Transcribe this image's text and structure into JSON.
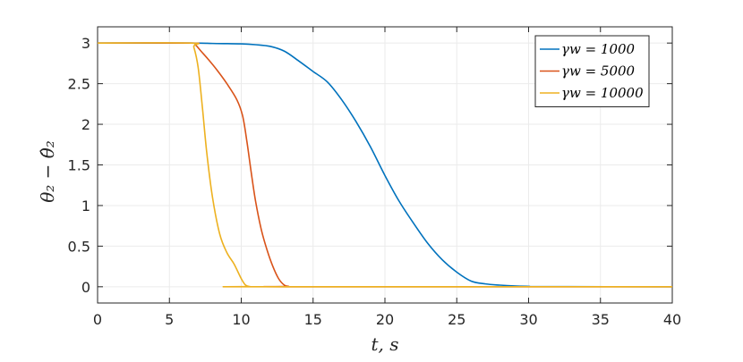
{
  "chart_data": {
    "type": "line",
    "title": "",
    "xlabel": "t, s",
    "ylabel": "θ₂ − θ̂₂",
    "xlim": [
      0,
      40
    ],
    "ylim": [
      -0.2,
      3.2
    ],
    "xticks": [
      0,
      5,
      10,
      15,
      20,
      25,
      30,
      35,
      40
    ],
    "yticks": [
      0,
      0.5,
      1,
      1.5,
      2,
      2.5,
      3
    ],
    "xtick_labels": [
      "0",
      "5",
      "10",
      "15",
      "20",
      "25",
      "30",
      "35",
      "40"
    ],
    "ytick_labels": [
      "0",
      "0.5",
      "1",
      "1.5",
      "2",
      "2.5",
      "3"
    ],
    "grid": true,
    "legend_position": "top-right",
    "series": [
      {
        "name": "γw = 1000",
        "color": "#0072BD",
        "x": [
          0,
          6.5,
          8,
          10,
          11,
          12,
          13,
          14,
          15,
          16,
          17,
          18,
          19,
          20,
          21,
          22,
          23,
          24,
          25,
          26,
          27,
          28,
          29,
          30,
          31,
          40
        ],
        "y": [
          3,
          3,
          2.995,
          2.99,
          2.98,
          2.96,
          2.9,
          2.78,
          2.65,
          2.52,
          2.3,
          2.03,
          1.72,
          1.37,
          1.05,
          0.78,
          0.53,
          0.33,
          0.18,
          0.07,
          0.035,
          0.02,
          0.01,
          0.005,
          0.002,
          0
        ]
      },
      {
        "name": "γw = 5000",
        "color": "#D95319",
        "x": [
          0,
          6.5,
          6.8,
          7.2,
          7.7,
          8.3,
          9,
          9.7,
          10.1,
          10.4,
          10.7,
          11,
          11.4,
          11.8,
          12.2,
          12.6,
          13,
          13.3,
          13.6,
          40
        ],
        "y": [
          3,
          3,
          2.98,
          2.9,
          2.8,
          2.67,
          2.5,
          2.3,
          2.1,
          1.78,
          1.4,
          1.05,
          0.7,
          0.45,
          0.25,
          0.1,
          0.02,
          0.005,
          0,
          0
        ]
      },
      {
        "name": "γw = 10000",
        "color": "#EDB120",
        "x": [
          0,
          6.5,
          6.7,
          7,
          7.3,
          7.6,
          8,
          8.5,
          9,
          9.5,
          10,
          10.3,
          10.6,
          11,
          40
        ],
        "y": [
          3,
          3,
          2.95,
          2.7,
          2.2,
          1.65,
          1.1,
          0.65,
          0.42,
          0.28,
          0.1,
          0.02,
          0.003,
          0,
          0
        ]
      }
    ]
  }
}
